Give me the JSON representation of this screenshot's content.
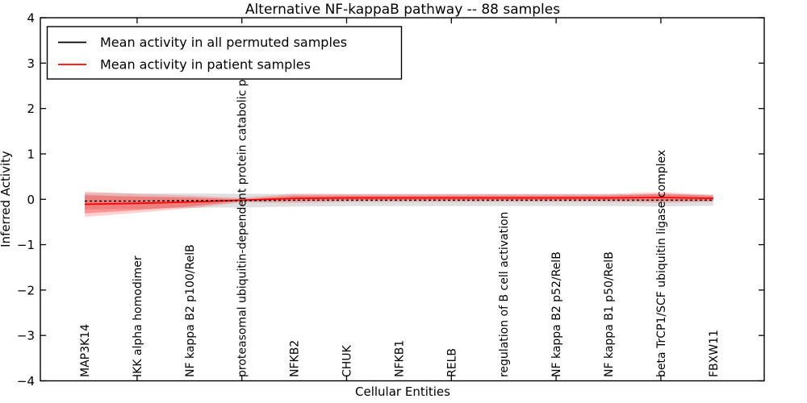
{
  "chart_data": {
    "type": "line",
    "title": "Alternative NF-kappaB pathway -- 88 samples",
    "xlabel": "Cellular Entities",
    "ylabel": "Inferred Activity",
    "ylim": [
      -4,
      4
    ],
    "yticks": [
      -4,
      -3,
      -2,
      -1,
      0,
      1,
      2,
      3,
      4
    ],
    "x_tick_indices": [
      1,
      3,
      5,
      7,
      9,
      11
    ],
    "grid": false,
    "legend_position": "upper left",
    "categories": [
      "MAP3K14",
      "IKK alpha homodimer",
      "NF kappa B2 p100/RelB",
      "proteasomal ubiquitin-dependent protein catabolic pr",
      "NFKB2",
      "CHUK",
      "NFKB1",
      "RELB",
      "regulation of B cell activation",
      "NF kappa B2 p52/RelB",
      "NF kappa B1 p50/RelB",
      "beta TrCP1/SCF ubiquitin ligase complex",
      "FBXW11"
    ],
    "series": [
      {
        "name": "Mean activity in all permuted samples",
        "color": "#000000",
        "line_style": "dashed",
        "band_color": "#000000",
        "band_opacity": 0.12,
        "values": [
          -0.04,
          -0.04,
          -0.03,
          -0.03,
          -0.02,
          -0.02,
          -0.02,
          -0.02,
          -0.02,
          -0.02,
          -0.02,
          -0.02,
          -0.02
        ],
        "band_halfwidth": [
          0.18,
          0.17,
          0.16,
          0.15,
          0.14,
          0.13,
          0.13,
          0.13,
          0.13,
          0.13,
          0.13,
          0.14,
          0.12
        ]
      },
      {
        "name": "Mean activity in patient samples",
        "color": "#ff0000",
        "line_style": "solid",
        "band_color": "#ff0000",
        "band_opacity": 0.18,
        "inner_band_opacity": 0.3,
        "values": [
          -0.11,
          -0.09,
          -0.06,
          -0.02,
          0.02,
          0.03,
          0.03,
          0.03,
          0.03,
          0.03,
          0.03,
          0.04,
          0.02
        ],
        "band_halfwidth": [
          0.28,
          0.21,
          0.14,
          0.05,
          0.1,
          0.09,
          0.09,
          0.09,
          0.09,
          0.09,
          0.09,
          0.12,
          0.08
        ],
        "inner_band_halfwidth": [
          0.2,
          0.15,
          0.1,
          0.02,
          0.06,
          0.05,
          0.05,
          0.05,
          0.05,
          0.05,
          0.05,
          0.08,
          0.05
        ]
      }
    ]
  }
}
